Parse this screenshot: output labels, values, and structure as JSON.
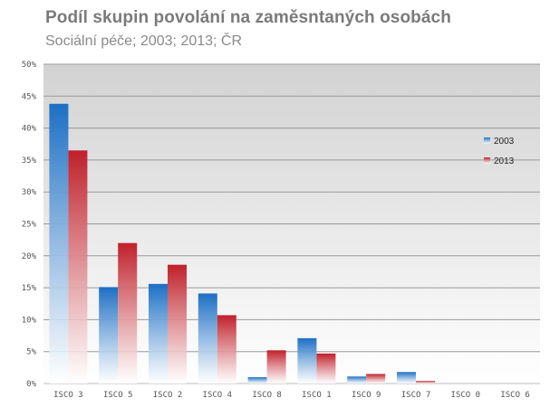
{
  "chart_data": {
    "type": "bar",
    "title": "Podíl skupin povolání na zaměsntaných osobách",
    "subtitle": "Sociální péče; 2003; 2013; ČR",
    "categories": [
      "ISCO 3",
      "ISCO 5",
      "ISCO 2",
      "ISCO 4",
      "ISCO 8",
      "ISCO 1",
      "ISCO 9",
      "ISCO 7",
      "ISCO 0",
      "ISCO 6"
    ],
    "series": [
      {
        "name": "2003",
        "color": "#1c6fc4",
        "values": [
          43.8,
          15.1,
          15.6,
          14.1,
          1.0,
          7.1,
          1.1,
          1.8,
          0.0,
          0.0
        ]
      },
      {
        "name": "2013",
        "color": "#c0202a",
        "values": [
          36.5,
          22.0,
          18.6,
          10.7,
          5.2,
          4.7,
          1.5,
          0.4,
          0.0,
          0.0
        ]
      }
    ],
    "ylim": [
      0,
      50
    ],
    "yticks": [
      "0%",
      "5%",
      "10%",
      "15%",
      "20%",
      "25%",
      "30%",
      "35%",
      "40%",
      "45%",
      "50%"
    ],
    "grid": true,
    "legend": "right"
  }
}
